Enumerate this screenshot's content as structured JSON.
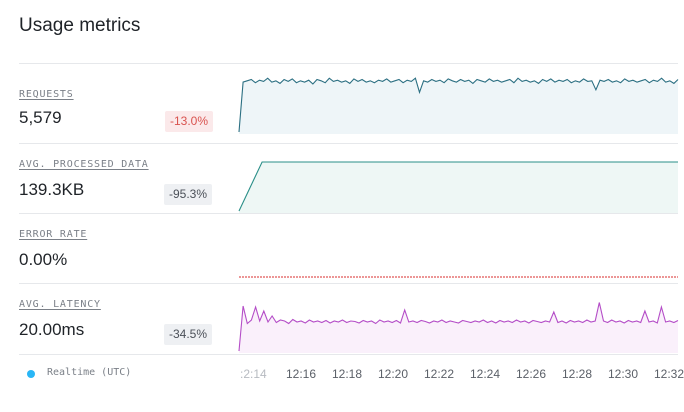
{
  "header": {
    "title": "Usage metrics"
  },
  "metrics": [
    {
      "label": "REQUESTS",
      "value": "5,579",
      "change": "-13.0%",
      "change_tone": "negative"
    },
    {
      "label": "AVG. PROCESSED DATA",
      "value": "139.3KB",
      "change": "-95.3%",
      "change_tone": "neutral"
    },
    {
      "label": "ERROR RATE",
      "value": "0.00%",
      "change": "",
      "change_tone": "none"
    },
    {
      "label": "AVG. LATENCY",
      "value": "20.00ms",
      "change": "-34.5%",
      "change_tone": "neutral"
    }
  ],
  "time_axis": {
    "legend_label": "Realtime (UTC)",
    "legend_color": "#29b6f6",
    "ticks": [
      ":2:14",
      "12:16",
      "12:18",
      "12:20",
      "12:22",
      "12:24",
      "12:26",
      "12:28",
      "12:30",
      "12:32"
    ]
  },
  "colors": {
    "requests": "#2b6f82",
    "processed": "#2a8f88",
    "error": "#e57373",
    "latency": "#b44dc7"
  },
  "chart_data": [
    {
      "type": "area",
      "title": "REQUESTS",
      "series": [
        {
          "values": [
            0,
            0.78,
            0.8,
            0.82,
            0.77,
            0.81,
            0.79,
            0.84,
            0.78,
            0.8,
            0.76,
            0.82,
            0.79,
            0.83,
            0.77,
            0.8,
            0.78,
            0.81,
            0.75,
            0.82,
            0.8,
            0.77,
            0.84,
            0.79,
            0.81,
            0.78,
            0.8,
            0.76,
            0.83,
            0.79,
            0.82,
            0.78,
            0.8,
            0.77,
            0.81,
            0.79,
            0.83,
            0.78,
            0.8,
            0.82,
            0.77,
            0.81,
            0.79,
            0.84,
            0.62,
            0.8,
            0.78,
            0.82,
            0.79,
            0.81,
            0.77,
            0.83,
            0.8,
            0.78,
            0.82,
            0.79,
            0.81,
            0.76,
            0.82,
            0.8,
            0.78,
            0.83,
            0.79,
            0.81,
            0.78,
            0.8,
            0.82,
            0.77,
            0.84,
            0.79,
            0.81,
            0.78,
            0.8,
            0.76,
            0.82,
            0.79,
            0.83,
            0.78,
            0.81,
            0.79,
            0.82,
            0.77,
            0.8,
            0.78,
            0.83,
            0.79,
            0.8,
            0.66,
            0.81,
            0.79,
            0.82,
            0.78,
            0.8,
            0.77,
            0.83,
            0.79,
            0.81,
            0.78,
            0.8,
            0.82,
            0.77,
            0.81,
            0.79,
            0.84,
            0.78,
            0.8,
            0.76,
            0.82
          ]
        }
      ]
    },
    {
      "type": "area",
      "title": "AVG. PROCESSED DATA",
      "series": [
        {
          "values": [
            0,
            0.98,
            0.98,
            0.98,
            0.98,
            0.98,
            0.98,
            0.98,
            0.98,
            0.98,
            0.98,
            0.98,
            0.98,
            0.98,
            0.98,
            0.98,
            0.98,
            0.98,
            0.98,
            0.98
          ]
        }
      ]
    },
    {
      "type": "line",
      "title": "ERROR RATE",
      "series": [
        {
          "values": [
            0,
            0,
            0,
            0,
            0,
            0,
            0,
            0,
            0,
            0
          ]
        }
      ]
    },
    {
      "type": "area",
      "title": "AVG. LATENCY",
      "series": [
        {
          "values": [
            0,
            0.9,
            0.55,
            0.62,
            0.88,
            0.6,
            0.8,
            0.58,
            0.7,
            0.57,
            0.62,
            0.6,
            0.55,
            0.63,
            0.58,
            0.6,
            0.56,
            0.62,
            0.58,
            0.6,
            0.57,
            0.61,
            0.56,
            0.6,
            0.58,
            0.62,
            0.57,
            0.6,
            0.59,
            0.56,
            0.61,
            0.58,
            0.6,
            0.55,
            0.62,
            0.58,
            0.6,
            0.57,
            0.61,
            0.56,
            0.82,
            0.58,
            0.6,
            0.57,
            0.61,
            0.59,
            0.56,
            0.6,
            0.58,
            0.62,
            0.57,
            0.6,
            0.58,
            0.56,
            0.61,
            0.59,
            0.57,
            0.6,
            0.58,
            0.62,
            0.57,
            0.6,
            0.56,
            0.61,
            0.58,
            0.6,
            0.57,
            0.62,
            0.58,
            0.6,
            0.56,
            0.61,
            0.59,
            0.57,
            0.6,
            0.58,
            0.78,
            0.57,
            0.6,
            0.56,
            0.61,
            0.58,
            0.6,
            0.57,
            0.62,
            0.58,
            0.6,
            0.97,
            0.6,
            0.57,
            0.62,
            0.58,
            0.6,
            0.56,
            0.61,
            0.58,
            0.6,
            0.57,
            0.8,
            0.58,
            0.6,
            0.56,
            0.88,
            0.58,
            0.6,
            0.57,
            0.61
          ]
        }
      ]
    }
  ]
}
